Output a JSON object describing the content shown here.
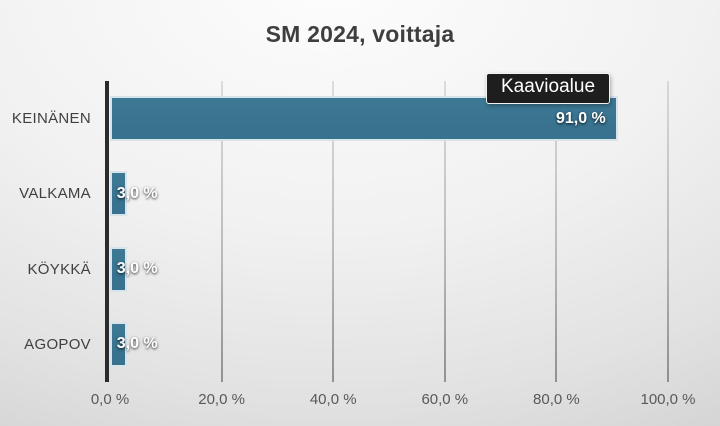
{
  "tooltip": {
    "label": "Kaavioalue",
    "bg": "#1e1e1e",
    "text_color": "#ffffff"
  },
  "chart_data": {
    "type": "bar",
    "orientation": "horizontal",
    "title": "SM 2024, voittaja",
    "categories": [
      "KEINÄNEN",
      "VALKAMA",
      "KÖYKKÄ",
      "AGOPOV"
    ],
    "values": [
      91.0,
      3.0,
      3.0,
      3.0
    ],
    "value_labels": [
      "91,0 %",
      "3,0 %",
      "3,0 %",
      "3,0 %"
    ],
    "x_tick_labels": [
      "0,0 %",
      "20,0 %",
      "40,0 %",
      "60,0 %",
      "80,0 %",
      "100,0 %"
    ],
    "x_tick_values": [
      0,
      20,
      40,
      60,
      80,
      100
    ],
    "xlim": [
      0,
      100
    ],
    "grid": true,
    "legend": false,
    "bar_color": "#38728f",
    "bar_border_color": "#d8e4ea",
    "label_inside_threshold": 50
  },
  "colors": {
    "title": "#3e3e3e",
    "category_label": "#404040",
    "tick_label": "#595959",
    "axis_line": "#2b2b2b"
  }
}
